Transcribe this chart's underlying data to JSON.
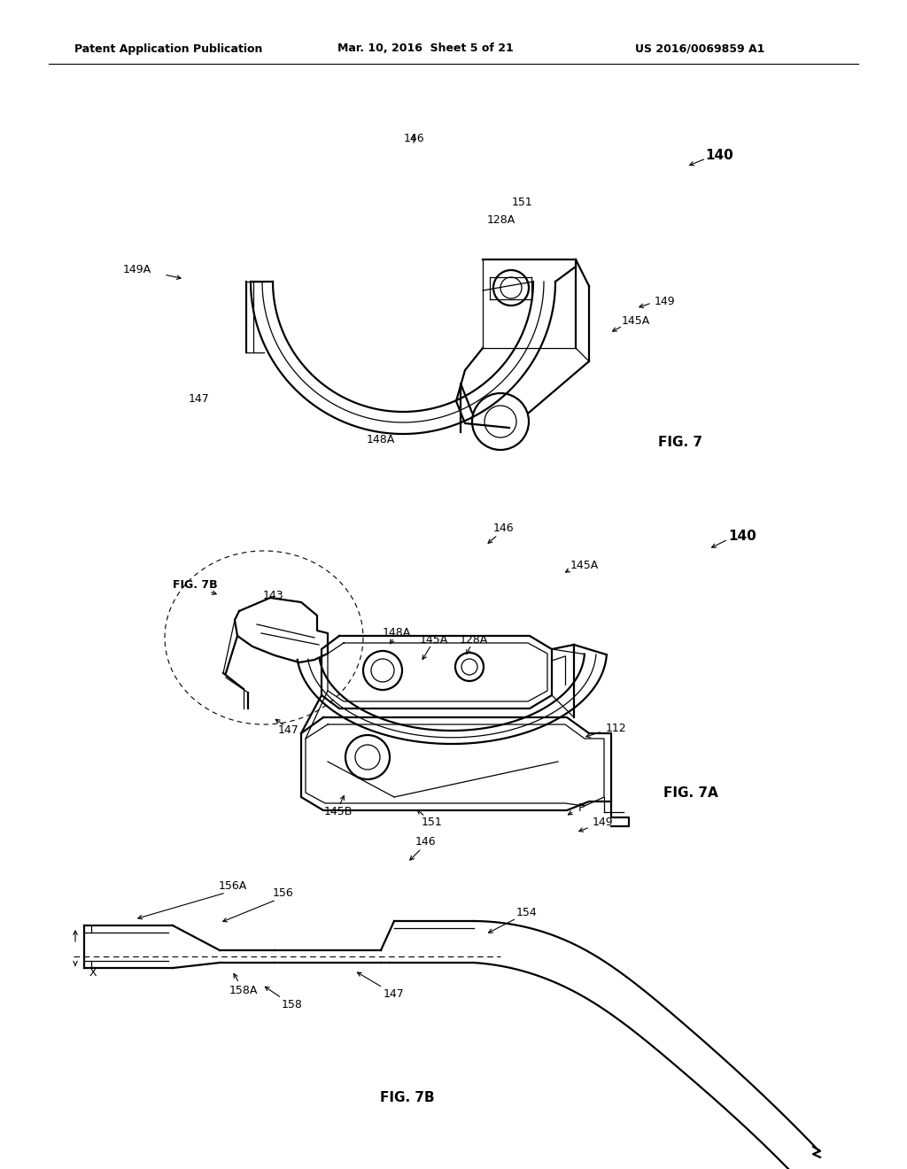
{
  "bg_color": "#ffffff",
  "lc": "#000000",
  "header_left": "Patent Application Publication",
  "header_mid": "Mar. 10, 2016  Sheet 5 of 21",
  "header_right": "US 2016/0069859 A1",
  "fig7_label": "FIG. 7",
  "fig7a_label": "FIG. 7A",
  "fig7b_label": "FIG. 7B",
  "lw_main": 1.6,
  "lw_thin": 0.9,
  "lw_hair": 0.6
}
